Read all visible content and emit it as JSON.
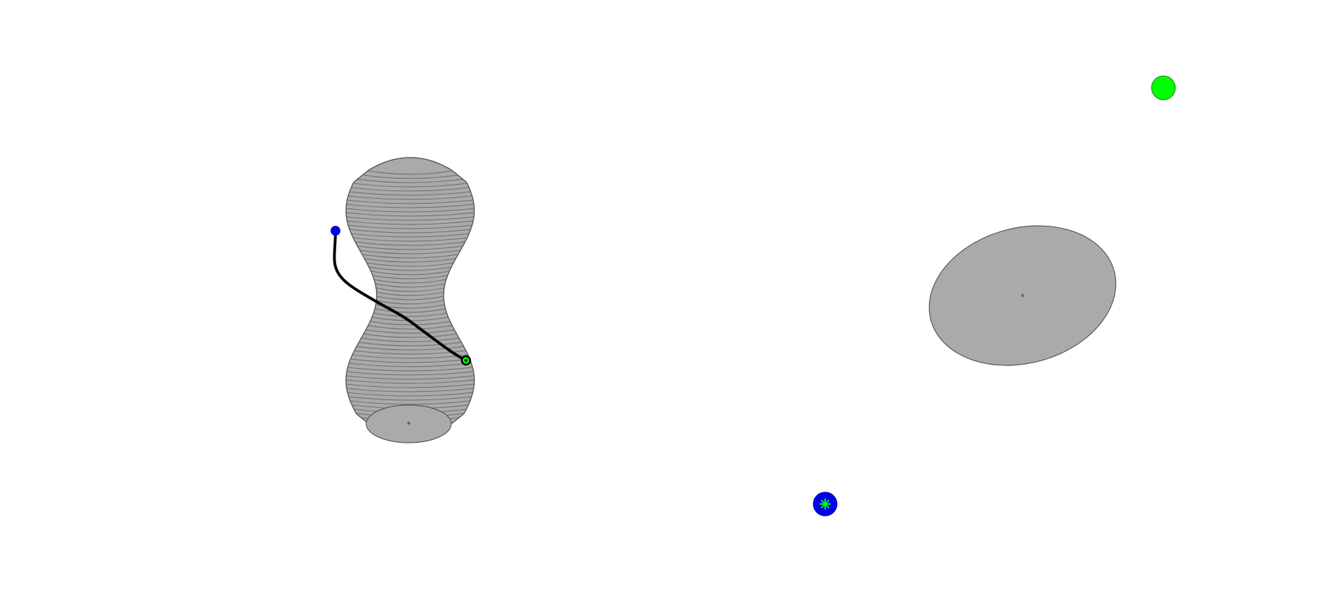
{
  "scene": {
    "background": "#ffffff",
    "colors": {
      "object_fill": "#aaaaaa",
      "object_stroke": "#555555",
      "rib_stroke": "#6a6a6a",
      "center_dot": "#666666",
      "target_fill": "#00ff00",
      "target_stroke": "#2e8b2e",
      "cursor_fill": "#0000ee",
      "cursor_stroke": "#0000aa",
      "path_stroke": "#000000",
      "tip_fill": "#00ff00"
    },
    "objects": [
      {
        "name": "vase-object",
        "shape": "curved-vase",
        "icon": "vase-icon"
      },
      {
        "name": "disc-object",
        "shape": "tilted-ellipse",
        "icon": "disc-icon"
      }
    ],
    "markers": [
      {
        "name": "goal-marker",
        "icon": "green-circle-icon"
      },
      {
        "name": "agent-marker",
        "icon": "blue-circle-with-green-star-icon"
      },
      {
        "name": "path-start-marker",
        "icon": "blue-dot-icon"
      },
      {
        "name": "path-end-marker",
        "icon": "green-ring-icon"
      }
    ]
  }
}
